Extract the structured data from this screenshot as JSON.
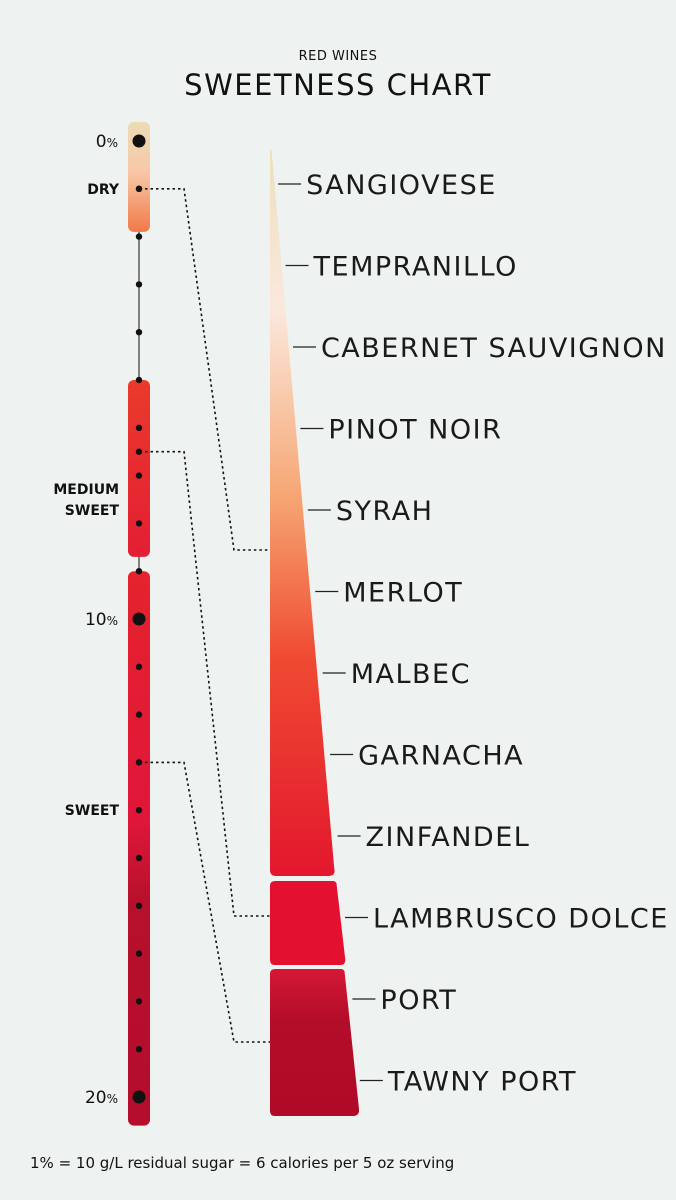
{
  "chart_data": {
    "type": "bar",
    "supertitle": "RED WINES",
    "title": "SWEETNESS CHART",
    "axis": {
      "ticks": [
        {
          "value": 0,
          "label": "0",
          "suffix": "%"
        },
        {
          "value": 10,
          "label": "10",
          "suffix": "%"
        },
        {
          "value": 20,
          "label": "20",
          "suffix": "%"
        }
      ]
    },
    "categories_levels": [
      {
        "label": "DRY",
        "value": 1
      },
      {
        "label": "MEDIUM SWEET",
        "value": 7.5
      },
      {
        "label": "SWEET",
        "value": 14
      }
    ],
    "wines": [
      "SANGIOVESE",
      "TEMPRANILLO",
      "CABERNET SAUVIGNON",
      "PINOT NOIR",
      "SYRAH",
      "MERLOT",
      "MALBEC",
      "GARNACHA",
      "ZINFANDEL",
      "LAMBRUSCO DOLCE",
      "PORT",
      "TAWNY PORT"
    ],
    "footnote": "1% = 10 g/L residual sugar = 6 calories per 5 oz serving"
  },
  "colors": {
    "background": "#eef2f1",
    "dry_top": "#ecdcb8",
    "dry_bottom": "#f07a48",
    "red": "#e62630",
    "deep_red": "#b50b2b"
  }
}
